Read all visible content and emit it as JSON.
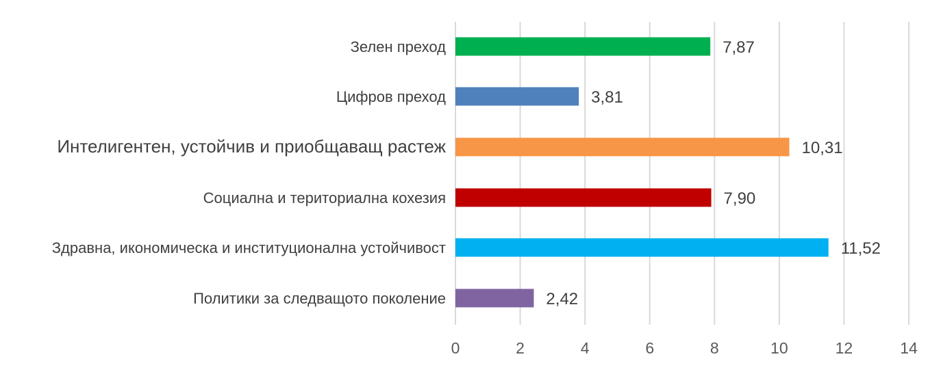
{
  "chart_data": {
    "type": "bar",
    "orientation": "horizontal",
    "title": "",
    "xlabel": "",
    "ylabel": "",
    "categories": [
      "Зелен преход",
      "Цифров преход",
      "Интелигентен, устойчив и приобщаващ растеж",
      "Социална и териториална кохезия",
      "Здравна, икономическа и институционална устойчивост",
      "Политики за следващото поколение"
    ],
    "values": [
      7.87,
      3.81,
      10.31,
      7.9,
      11.52,
      2.42
    ],
    "value_labels": [
      "7,87",
      "3,81",
      "10,31",
      "7,90",
      "11,52",
      "2,42"
    ],
    "bar_colors": [
      "#00b050",
      "#4f81bd",
      "#f79646",
      "#c00000",
      "#00b0f0",
      "#8064a2"
    ],
    "xlim": [
      0,
      14
    ],
    "xticks": [
      0,
      2,
      4,
      6,
      8,
      10,
      12,
      14
    ],
    "xtick_labels": [
      "0",
      "2",
      "4",
      "6",
      "8",
      "10",
      "12",
      "14"
    ],
    "grid": true,
    "legend": "none"
  }
}
